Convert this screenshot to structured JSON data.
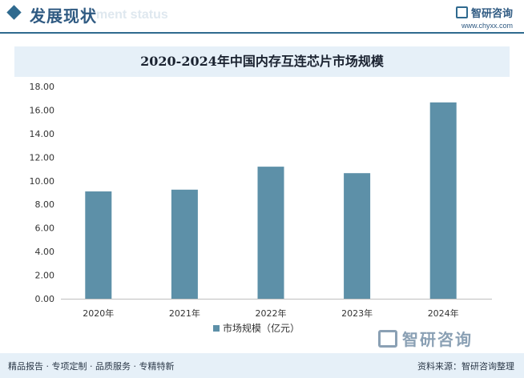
{
  "header": {
    "section_title": "发展现状",
    "section_ghost": "ment status",
    "brand_name": "智研咨询",
    "brand_url": "www.chyxx.com"
  },
  "chart_data": {
    "type": "bar",
    "title": "2020-2024年中国内存互连芯片市场规模",
    "categories": [
      "2020年",
      "2021年",
      "2022年",
      "2023年",
      "2024年"
    ],
    "series": [
      {
        "name": "市场规模（亿元）",
        "values": [
          9.1,
          9.25,
          11.2,
          10.65,
          16.65
        ]
      }
    ],
    "ylim": [
      0,
      18
    ],
    "yticks": [
      "0.00",
      "2.00",
      "4.00",
      "6.00",
      "8.00",
      "10.00",
      "12.00",
      "14.00",
      "16.00",
      "18.00"
    ],
    "bar_color": "#5d90a8",
    "legend_position": "bottom",
    "grid": false
  },
  "watermark": {
    "logo_text": "智研咨询"
  },
  "footer": {
    "left": "精品报告 · 专项定制 · 品质服务 · 专精特新",
    "right": "资料来源：智研咨询整理"
  }
}
